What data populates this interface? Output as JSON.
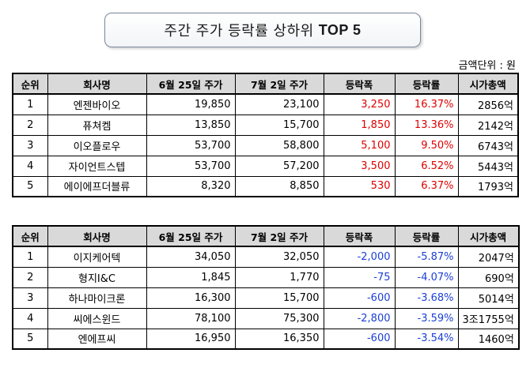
{
  "title": {
    "main": "주간 주가 등락률 상하위",
    "bold": "TOP 5"
  },
  "unit_label": "금액단위 : 원",
  "headers": [
    "순위",
    "회사명",
    "6월 25일 주가",
    "7월 2일 주가",
    "등락폭",
    "등락률",
    "시가총액"
  ],
  "colors": {
    "positive": "#e00000",
    "negative": "#1a3fd6",
    "header_bg": "#d9d9d9"
  },
  "top_gainers": [
    {
      "rank": "1",
      "name": "엔젠바이오",
      "price_0625": "19,850",
      "price_0702": "23,100",
      "change": "3,250",
      "rate": "16.37%",
      "cap": "2856억"
    },
    {
      "rank": "2",
      "name": "퓨쳐켐",
      "price_0625": "13,850",
      "price_0702": "15,700",
      "change": "1,850",
      "rate": "13.36%",
      "cap": "2142억"
    },
    {
      "rank": "3",
      "name": "이오플로우",
      "price_0625": "53,700",
      "price_0702": "58,800",
      "change": "5,100",
      "rate": "9.50%",
      "cap": "6743억"
    },
    {
      "rank": "4",
      "name": "자이언트스텝",
      "price_0625": "53,700",
      "price_0702": "57,200",
      "change": "3,500",
      "rate": "6.52%",
      "cap": "5443억"
    },
    {
      "rank": "5",
      "name": "에이에프더블류",
      "price_0625": "8,320",
      "price_0702": "8,850",
      "change": "530",
      "rate": "6.37%",
      "cap": "1793억"
    }
  ],
  "top_losers": [
    {
      "rank": "1",
      "name": "이지케어텍",
      "price_0625": "34,050",
      "price_0702": "32,050",
      "change": "-2,000",
      "rate": "-5.87%",
      "cap": "2047억"
    },
    {
      "rank": "2",
      "name": "형지I&C",
      "price_0625": "1,845",
      "price_0702": "1,770",
      "change": "-75",
      "rate": "-4.07%",
      "cap": "690억"
    },
    {
      "rank": "3",
      "name": "하나마이크론",
      "price_0625": "16,300",
      "price_0702": "15,700",
      "change": "-600",
      "rate": "-3.68%",
      "cap": "5014억"
    },
    {
      "rank": "4",
      "name": "씨에스윈드",
      "price_0625": "78,100",
      "price_0702": "75,300",
      "change": "-2,800",
      "rate": "-3.59%",
      "cap": "3조1755억"
    },
    {
      "rank": "5",
      "name": "엔에프씨",
      "price_0625": "16,950",
      "price_0702": "16,350",
      "change": "-600",
      "rate": "-3.54%",
      "cap": "1460억"
    }
  ]
}
